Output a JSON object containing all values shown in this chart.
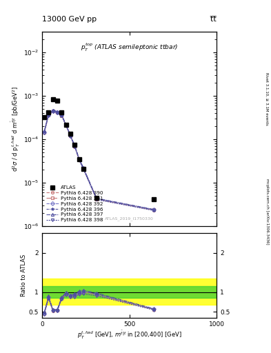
{
  "title_left": "13000 GeV pp",
  "title_right": "t̅t̅",
  "plot_label": "$p_T^{top}$ (ATLAS semileptonic ttbar)",
  "watermark": "ATLAS_2019_I1750330",
  "ylabel_main": "d$^2\\sigma$ / d p$_T^{t,had}$ d m$^{\\bar{t}|t}$ [pb/GeV$^2$]",
  "ylabel_ratio": "Ratio to ATLAS",
  "xlabel": "$p_T^{t,had}$ [GeV], $m^{\\bar{t}|t}$ in [200,400] [GeV]",
  "right_label_top": "Rivet 3.1.10, ≥ 3.1M events",
  "right_label_bot": "mcplots.cern.ch [arXiv:1306.3436]",
  "ylim_main": [
    1e-06,
    0.03
  ],
  "ylim_ratio": [
    0.35,
    2.5
  ],
  "xlim": [
    0,
    1000
  ],
  "atlas_x": [
    12.5,
    37.5,
    62.5,
    87.5,
    112.5,
    137.5,
    162.5,
    187.5,
    212.5,
    237.5,
    312.5,
    637.5
  ],
  "atlas_y": [
    0.00032,
    0.00042,
    0.00085,
    0.00078,
    0.00042,
    0.00022,
    0.000135,
    7.5e-05,
    3.5e-05,
    2.1e-05,
    4.5e-06,
    4.2e-06
  ],
  "mc_x": [
    12.5,
    37.5,
    62.5,
    87.5,
    112.5,
    137.5,
    162.5,
    187.5,
    212.5,
    237.5,
    312.5,
    637.5
  ],
  "mc390_y": [
    0.000145,
    0.00036,
    0.00045,
    0.00042,
    0.00035,
    0.00021,
    0.00012,
    6.8e-05,
    3.4e-05,
    2.1e-05,
    4.2e-06,
    2.35e-06
  ],
  "mc391_y": [
    0.000145,
    0.000362,
    0.000452,
    0.000422,
    0.000352,
    0.000212,
    0.000121,
    6.85e-05,
    3.42e-05,
    2.12e-05,
    4.22e-06,
    2.37e-06
  ],
  "mc392_y": [
    0.000146,
    0.000365,
    0.000455,
    0.000425,
    0.000355,
    0.000213,
    0.000122,
    6.9e-05,
    3.45e-05,
    2.13e-05,
    4.25e-06,
    2.38e-06
  ],
  "mc396_y": [
    0.00015,
    0.00037,
    0.00046,
    0.00043,
    0.00036,
    0.000215,
    0.000122,
    7e-05,
    3.5e-05,
    2.15e-05,
    4.3e-06,
    2.4e-06
  ],
  "mc397_y": [
    0.000155,
    0.00038,
    0.00047,
    0.00044,
    0.000365,
    0.00022,
    0.000125,
    7.2e-05,
    3.6e-05,
    2.2e-05,
    4.4e-06,
    2.45e-06
  ],
  "mc398_y": [
    0.00014,
    0.00035,
    0.00044,
    0.00041,
    0.000345,
    0.000205,
    0.000118,
    6.6e-05,
    3.3e-05,
    2e-05,
    4.1e-06,
    2.3e-06
  ],
  "ratio390": [
    0.453,
    0.857,
    0.529,
    0.538,
    0.833,
    0.955,
    0.889,
    0.907,
    0.971,
    1.0,
    0.933,
    0.56
  ],
  "ratio391": [
    0.453,
    0.862,
    0.532,
    0.541,
    0.838,
    0.964,
    0.896,
    0.913,
    0.977,
    1.01,
    0.938,
    0.564
  ],
  "ratio392": [
    0.456,
    0.869,
    0.535,
    0.545,
    0.845,
    0.968,
    0.904,
    0.92,
    0.986,
    1.014,
    0.944,
    0.567
  ],
  "ratio396": [
    0.469,
    0.881,
    0.541,
    0.551,
    0.857,
    0.977,
    0.904,
    0.933,
    1.0,
    1.024,
    0.956,
    0.571
  ],
  "ratio397": [
    0.484,
    0.905,
    0.553,
    0.564,
    0.869,
    1.0,
    0.926,
    0.96,
    1.029,
    1.048,
    0.978,
    0.583
  ],
  "ratio398": [
    0.438,
    0.833,
    0.518,
    0.526,
    0.821,
    0.932,
    0.874,
    0.88,
    0.943,
    0.952,
    0.911,
    0.548
  ],
  "green_band_lo": 0.85,
  "green_band_hi": 1.15,
  "yellow_band_lo": 0.68,
  "yellow_band_hi": 1.35,
  "color_390": "#c87878",
  "color_391": "#c87878",
  "color_392": "#7878c8",
  "color_396": "#5050a0",
  "color_397": "#5050a0",
  "color_398": "#5050a0",
  "legend_entries": [
    "ATLAS",
    "Pythia 6.428 390",
    "Pythia 6.428 391",
    "Pythia 6.428 392",
    "Pythia 6.428 396",
    "Pythia 6.428 397",
    "Pythia 6.428 398"
  ]
}
